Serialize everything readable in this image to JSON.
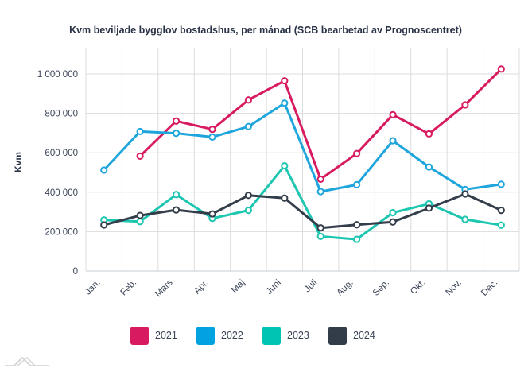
{
  "chart_data": {
    "type": "line",
    "title": "Kvm beviljade bygglov bostadshus, per månad (SCB bearbetad av Prognoscentret)",
    "xlabel": "",
    "ylabel": "Kvm",
    "ylim": [
      0,
      1100000
    ],
    "yticks": [
      0,
      200000,
      400000,
      600000,
      800000,
      1000000
    ],
    "ytick_labels": [
      "0",
      "200 000",
      "400 000",
      "600 000",
      "800 000",
      "1 000 000"
    ],
    "grid": true,
    "legend_position": "bottom",
    "categories": [
      "Jan.",
      "Feb.",
      "Mars",
      "Apr.",
      "Maj",
      "Juni",
      "Juli",
      "Aug.",
      "Sep.",
      "Okt.",
      "Nov.",
      "Dec."
    ],
    "series": [
      {
        "name": "2021",
        "color": "#d81b60",
        "values": [
          null,
          583000,
          761000,
          719000,
          868000,
          965000,
          466000,
          596000,
          793000,
          696000,
          843000,
          1025000
        ]
      },
      {
        "name": "2022",
        "color": "#1ea5dc",
        "values": [
          512000,
          708000,
          699000,
          680000,
          733000,
          852000,
          403000,
          438000,
          661000,
          528000,
          414000,
          440000
        ]
      },
      {
        "name": "2023",
        "color": "#1cc6b0",
        "values": [
          259000,
          251000,
          388000,
          267000,
          308000,
          534000,
          176000,
          161000,
          296000,
          341000,
          262000,
          233000
        ]
      },
      {
        "name": "2024",
        "color": "#343e4b",
        "values": [
          234000,
          282000,
          310000,
          290000,
          384000,
          370000,
          219000,
          235000,
          249000,
          319000,
          391000,
          308000
        ]
      }
    ]
  },
  "legend": {
    "items": [
      {
        "label": "2021",
        "color": "#d81b60"
      },
      {
        "label": "2022",
        "color": "#00a3e0"
      },
      {
        "label": "2023",
        "color": "#00c4b3"
      },
      {
        "label": "2024",
        "color": "#333d49"
      }
    ]
  },
  "logo": {
    "icon": "mountain-logo-icon"
  }
}
